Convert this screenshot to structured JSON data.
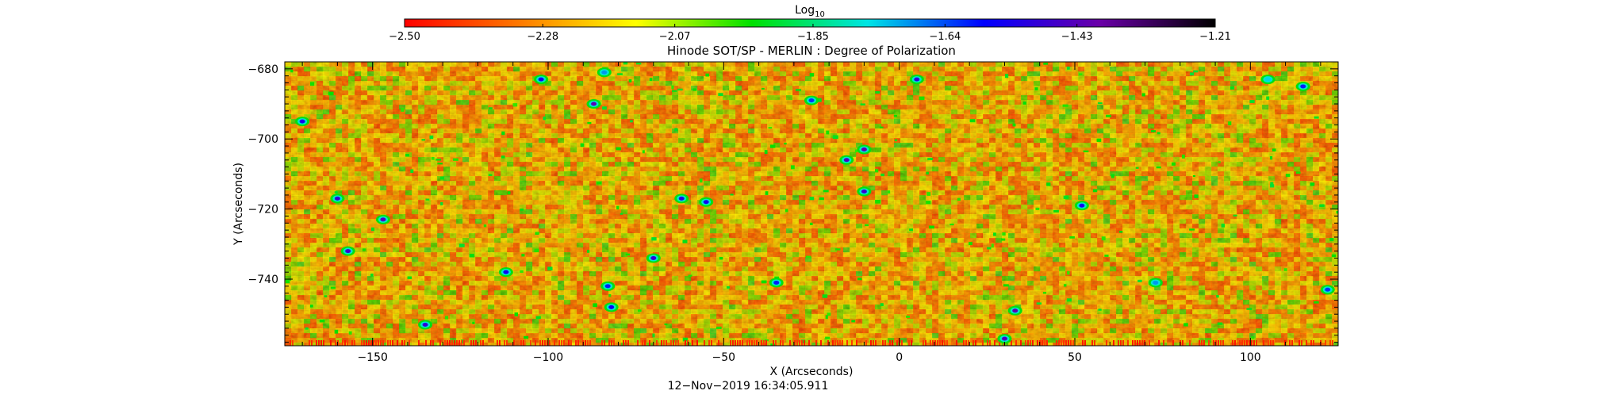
{
  "chart_data": {
    "type": "heatmap",
    "title": "Hinode SOT/SP - MERLIN : Degree of Polarization",
    "xlabel": "X (Arcseconds)",
    "ylabel": "Y (Arcseconds)",
    "xlim": [
      -175,
      125
    ],
    "ylim": [
      -759,
      -678
    ],
    "x_ticks": [
      -150,
      -100,
      -50,
      0,
      50,
      100
    ],
    "x_tick_labels": [
      "−150",
      "−100",
      "−50",
      "0",
      "50",
      "100"
    ],
    "y_ticks": [
      -680,
      -700,
      -720,
      -740
    ],
    "y_tick_labels": [
      "−680",
      "−700",
      "−720",
      "−740"
    ],
    "colorbar": {
      "label": "Log",
      "label_subscript": "10",
      "range": [
        -2.5,
        -1.21
      ],
      "ticks": [
        -2.5,
        -2.28,
        -2.07,
        -1.85,
        -1.64,
        -1.43,
        -1.21
      ],
      "tick_labels": [
        "−2.50",
        "−2.28",
        "−2.07",
        "−1.85",
        "−1.64",
        "−1.43",
        "−1.21"
      ],
      "colormap": [
        "#ff0000",
        "#ff7a00",
        "#ffff00",
        "#00e000",
        "#00e5e5",
        "#0000ff",
        "#6a00a8",
        "#000000"
      ]
    },
    "dominant_color": "#ef8a1c",
    "features": [
      {
        "x": -170,
        "y": -695,
        "value": -1.55
      },
      {
        "x": -160,
        "y": -717,
        "value": -1.5
      },
      {
        "x": -147,
        "y": -723,
        "value": -1.45
      },
      {
        "x": -157,
        "y": -732,
        "value": -1.48
      },
      {
        "x": -135,
        "y": -753,
        "value": -1.5
      },
      {
        "x": -112,
        "y": -738,
        "value": -1.55
      },
      {
        "x": -102,
        "y": -683,
        "value": -1.55
      },
      {
        "x": -87,
        "y": -690,
        "value": -1.42
      },
      {
        "x": -84,
        "y": -681,
        "value": -1.7
      },
      {
        "x": -83,
        "y": -742,
        "value": -1.6
      },
      {
        "x": -82,
        "y": -748,
        "value": -1.55
      },
      {
        "x": -70,
        "y": -734,
        "value": -1.5
      },
      {
        "x": -62,
        "y": -717,
        "value": -1.52
      },
      {
        "x": -55,
        "y": -718,
        "value": -1.55
      },
      {
        "x": -35,
        "y": -741,
        "value": -1.6
      },
      {
        "x": -25,
        "y": -689,
        "value": -1.62
      },
      {
        "x": -15,
        "y": -706,
        "value": -1.45
      },
      {
        "x": -10,
        "y": -703,
        "value": -1.42
      },
      {
        "x": -10,
        "y": -715,
        "value": -1.48
      },
      {
        "x": 5,
        "y": -683,
        "value": -1.5
      },
      {
        "x": 33,
        "y": -749,
        "value": -1.42
      },
      {
        "x": 30,
        "y": -757,
        "value": -1.45
      },
      {
        "x": 52,
        "y": -719,
        "value": -1.55
      },
      {
        "x": 73,
        "y": -741,
        "value": -1.7
      },
      {
        "x": 105,
        "y": -683,
        "value": -1.75
      },
      {
        "x": 115,
        "y": -685,
        "value": -1.6
      },
      {
        "x": 122,
        "y": -743,
        "value": -1.62
      }
    ]
  },
  "footer": {
    "timestamp": "12−Nov−2019 16:34:05.911"
  }
}
